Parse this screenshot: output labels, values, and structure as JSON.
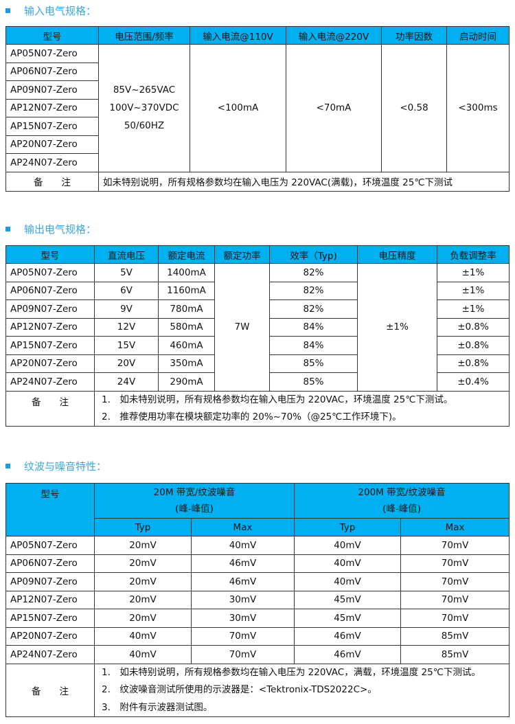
{
  "input": {
    "title": "输入电气规格：",
    "headers": [
      "型号",
      "电压范围/频率",
      "输入电流@110V",
      "输入电流@220V",
      "功率因数",
      "启动时间"
    ],
    "models": [
      "AP05N07-Zero",
      "AP06N07-Zero",
      "AP09N07-Zero",
      "AP12N07-Zero",
      "AP15N07-Zero",
      "AP20N07-Zero",
      "AP24N07-Zero"
    ],
    "voltage": [
      "85V~265VAC",
      "100V~370VDC",
      "50/60HZ"
    ],
    "current110": "<100mA",
    "current220": "<70mA",
    "pf": "<0.58",
    "startup": "<300ms",
    "note_label": "备　　注",
    "note": "如未特别说明，所有规格参数均在输入电压为 220VAC(满载)，环境温度 25℃下测试"
  },
  "output": {
    "title": "输出电气规格：",
    "headers": [
      "型号",
      "直流电压",
      "额定电流",
      "额定功率",
      "效率（Typ)",
      "电压精度",
      "负载调整率"
    ],
    "rows": [
      [
        "AP05N07-Zero",
        "5V",
        "1400mA",
        "82%",
        "±1%"
      ],
      [
        "AP06N07-Zero",
        "6V",
        "1160mA",
        "82%",
        "±1%"
      ],
      [
        "AP09N07-Zero",
        "9V",
        "780mA",
        "82%",
        "±1%"
      ],
      [
        "AP12N07-Zero",
        "12V",
        "580mA",
        "84%",
        "±0.8%"
      ],
      [
        "AP15N07-Zero",
        "15V",
        "460mA",
        "84%",
        "±0.8%"
      ],
      [
        "AP20N07-Zero",
        "20V",
        "350mA",
        "85%",
        "±0.8%"
      ],
      [
        "AP24N07-Zero",
        "24V",
        "290mA",
        "85%",
        "±0.4%"
      ]
    ],
    "power": "7W",
    "accuracy": "±1%",
    "note_label": "备　　注",
    "notes": [
      "1.　如未特别说明，所有规格参数均在输入电压为 220VAC，环境温度 25℃下测试。",
      "2.　推荐使用功率在模块额定功率的 20%~70%（@25℃工作环境下)。"
    ]
  },
  "ripple": {
    "title": "纹波与噪音特性：",
    "headers": [
      "型号",
      "20M 带宽/纹波噪音",
      "200M 带宽/纹波噪音"
    ],
    "sub": "(峰-峰值)",
    "subheaders": [
      "Typ",
      "Max",
      "Typ",
      "Max"
    ],
    "rows": [
      [
        "AP05N07-Zero",
        "20mV",
        "40mV",
        "40mV",
        "70mV"
      ],
      [
        "AP06N07-Zero",
        "20mV",
        "46mV",
        "40mV",
        "70mV"
      ],
      [
        "AP09N07-Zero",
        "20mV",
        "46mV",
        "40mV",
        "70mV"
      ],
      [
        "AP12N07-Zero",
        "20mV",
        "30mV",
        "45mV",
        "70mV"
      ],
      [
        "AP15N07-Zero",
        "20mV",
        "30mV",
        "45mV",
        "70mV"
      ],
      [
        "AP20N07-Zero",
        "40mV",
        "70mV",
        "46mV",
        "85mV"
      ],
      [
        "AP24N07-Zero",
        "40mV",
        "70mV",
        "46mV",
        "85mV"
      ]
    ],
    "note_label": "备　　注",
    "notes": [
      "1.　如未特别说明，所有规格参数均在输入电压为 220VAC，满载，环境温度 25℃下测试。",
      "2.　纹波噪音测试所使用的示波器是：<Tektronix-TDS2022C>。",
      "3.　附件有示波器测试图。"
    ]
  }
}
